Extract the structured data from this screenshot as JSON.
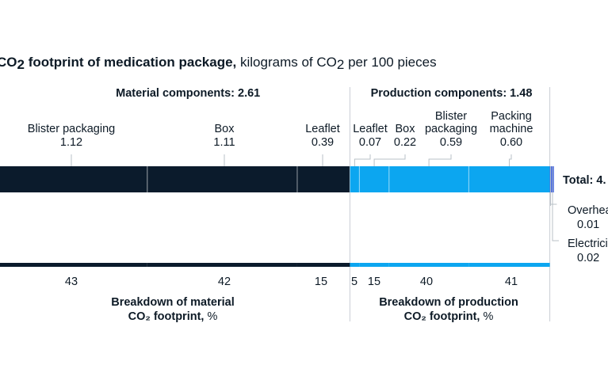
{
  "chart_data": {
    "type": "bar",
    "title_prefix": "CO",
    "title_sub": "2",
    "title_bold_suffix": " footprint of medication package,",
    "title_rest": " kilograms of CO",
    "title_rest_sub": "2",
    "title_rest_suffix": " per 100 pieces",
    "material": {
      "header": "Material components: 2.61",
      "footer_line1": "Breakdown of material",
      "footer_line2_bold": "CO₂ footprint,",
      "footer_line2_normal": " %",
      "color": "#0b1b2c",
      "items": [
        {
          "label_lines": [
            "Blister packaging"
          ],
          "value": 1.12,
          "value_label": "1.12",
          "percent": 43
        },
        {
          "label_lines": [
            "Box"
          ],
          "value": 1.11,
          "value_label": "1.11",
          "percent": 42
        },
        {
          "label_lines": [
            "Leaflet"
          ],
          "value": 0.39,
          "value_label": "0.39",
          "percent": 15
        }
      ]
    },
    "production": {
      "header": "Production components: 1.48",
      "footer_line1": "Breakdown of production",
      "footer_line2_bold": "CO₂ footprint,",
      "footer_line2_normal": " %",
      "color": "#0ca6f0",
      "items": [
        {
          "label_lines": [
            "Leaflet"
          ],
          "value": 0.07,
          "value_label": "0.07",
          "percent": 5
        },
        {
          "label_lines": [
            "Box"
          ],
          "value": 0.22,
          "value_label": "0.22",
          "percent": 15
        },
        {
          "label_lines": [
            "Blister",
            "packaging"
          ],
          "value": 0.59,
          "value_label": "0.59",
          "percent": 40
        },
        {
          "label_lines": [
            "Packing",
            "machine"
          ],
          "value": 0.6,
          "value_label": "0.60",
          "percent": 41
        }
      ]
    },
    "other": {
      "color": "#2f56e0",
      "items": [
        {
          "label": "Overhea",
          "value": 0.01,
          "value_label": "0.01"
        },
        {
          "label": "Electrici",
          "value": 0.02,
          "value_label": "0.02"
        }
      ]
    },
    "total_label": "Total: 4.",
    "x_domain": [
      0,
      4.12
    ]
  }
}
